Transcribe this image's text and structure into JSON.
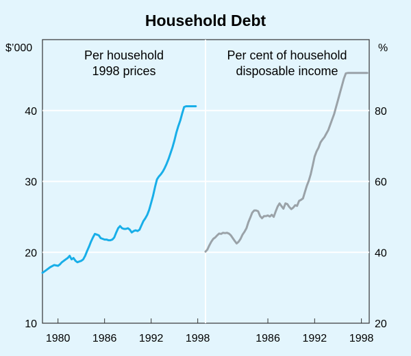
{
  "chart_data": {
    "type": "line",
    "title": "Household Debt",
    "grid": true,
    "x_ticks": [
      "1980",
      "1986",
      "1992",
      "1998"
    ],
    "panels": [
      {
        "label_lines": [
          "Per household",
          "1998 prices"
        ],
        "y_unit": "$’000",
        "y_axis_side": "left",
        "ylim": [
          10,
          50
        ],
        "y_ticks": [
          "10",
          "20",
          "30",
          "40"
        ],
        "xlim": [
          1978.0,
          1999.0
        ],
        "x_ticks": [
          "1980",
          "1986",
          "1992",
          "1998"
        ],
        "series": [
          {
            "color": "#18aee8",
            "x": [
              1978.0,
              1978.5,
              1979.0,
              1979.5,
              1980.0,
              1980.25,
              1980.5,
              1981.0,
              1981.25,
              1981.5,
              1981.75,
              1982.0,
              1982.25,
              1982.5,
              1982.75,
              1983.0,
              1983.25,
              1983.5,
              1983.75,
              1984.0,
              1984.25,
              1984.5,
              1984.75,
              1985.0,
              1985.25,
              1985.5,
              1985.75,
              1986.0,
              1986.25,
              1986.5,
              1986.75,
              1987.0,
              1987.25,
              1987.5,
              1987.75,
              1988.0,
              1988.25,
              1988.5,
              1988.75,
              1989.0,
              1989.25,
              1989.5,
              1989.75,
              1990.0,
              1990.25,
              1990.5,
              1990.75,
              1991.0,
              1991.25,
              1991.5,
              1991.75,
              1992.0,
              1992.25,
              1992.5,
              1992.75,
              1993.0,
              1993.25,
              1993.5,
              1993.75,
              1994.0,
              1994.25,
              1994.5,
              1994.75,
              1995.0,
              1995.25,
              1995.5,
              1995.75,
              1996.0,
              1996.25,
              1996.5,
              1996.75,
              1997.0,
              1997.25,
              1997.5,
              1997.75
            ],
            "values": [
              17.1,
              17.5,
              17.9,
              18.2,
              18.1,
              18.3,
              18.6,
              19.0,
              19.2,
              19.5,
              19.0,
              19.2,
              18.8,
              18.6,
              18.7,
              18.8,
              19.0,
              19.5,
              20.2,
              20.8,
              21.5,
              22.1,
              22.6,
              22.5,
              22.4,
              22.0,
              21.9,
              21.8,
              21.8,
              21.7,
              21.7,
              21.8,
              22.1,
              22.8,
              23.4,
              23.7,
              23.4,
              23.3,
              23.3,
              23.4,
              23.2,
              22.8,
              23.0,
              23.1,
              23.0,
              23.2,
              23.8,
              24.4,
              24.8,
              25.3,
              26.0,
              27.0,
              28.0,
              29.2,
              30.3,
              30.7,
              31.0,
              31.4,
              31.9,
              32.5,
              33.2,
              34.0,
              34.8,
              35.8,
              36.9,
              37.8,
              38.6,
              39.6,
              40.5,
              40.6,
              40.6,
              40.6,
              40.6,
              40.6,
              40.6
            ]
          }
        ]
      },
      {
        "label_lines": [
          "Per cent of household",
          "disposable income"
        ],
        "y_unit": "%",
        "y_axis_side": "right",
        "ylim": [
          20,
          100
        ],
        "y_ticks": [
          "20",
          "40",
          "60",
          "80"
        ],
        "xlim": [
          1978.0,
          1999.0
        ],
        "x_ticks": [
          "1986",
          "1992",
          "1998"
        ],
        "series": [
          {
            "color": "#9aa2a8",
            "x": [
              1978.0,
              1978.25,
              1978.5,
              1978.75,
              1979.0,
              1979.25,
              1979.5,
              1979.75,
              1980.0,
              1980.25,
              1980.5,
              1980.75,
              1981.0,
              1981.25,
              1981.5,
              1981.75,
              1982.0,
              1982.25,
              1982.5,
              1982.75,
              1983.0,
              1983.25,
              1983.5,
              1983.75,
              1984.0,
              1984.25,
              1984.5,
              1984.75,
              1985.0,
              1985.25,
              1985.5,
              1985.75,
              1986.0,
              1986.25,
              1986.5,
              1986.75,
              1987.0,
              1987.25,
              1987.5,
              1987.75,
              1988.0,
              1988.25,
              1988.5,
              1988.75,
              1989.0,
              1989.25,
              1989.5,
              1989.75,
              1990.0,
              1990.25,
              1990.5,
              1990.75,
              1991.0,
              1991.25,
              1991.5,
              1991.75,
              1992.0,
              1992.25,
              1992.5,
              1992.75,
              1993.0,
              1993.25,
              1993.5,
              1993.75,
              1994.0,
              1994.25,
              1994.5,
              1994.75,
              1995.0,
              1995.25,
              1995.5,
              1995.75,
              1996.0,
              1996.25,
              1996.5,
              1996.75,
              1997.0,
              1997.25,
              1997.5,
              1997.75,
              1998.0,
              1998.25,
              1998.5,
              1998.75
            ],
            "values": [
              40.2,
              40.8,
              42.0,
              43.0,
              43.8,
              44.2,
              44.8,
              45.3,
              45.2,
              45.5,
              45.4,
              45.5,
              45.3,
              44.8,
              44.0,
              43.2,
              42.5,
              43.0,
              43.8,
              45.0,
              45.8,
              46.8,
              48.5,
              49.8,
              51.2,
              51.8,
              51.8,
              51.6,
              50.2,
              49.6,
              50.2,
              50.2,
              50.4,
              50.1,
              50.6,
              50.0,
              51.5,
              52.9,
              53.8,
              53.0,
              52.3,
              53.8,
              53.6,
              52.8,
              52.2,
              52.6,
              53.3,
              53.1,
              54.5,
              54.8,
              55.2,
              57.0,
              58.8,
              60.2,
              62.0,
              64.5,
              67.0,
              68.5,
              69.5,
              71.0,
              71.8,
              72.5,
              73.5,
              74.5,
              76.0,
              77.5,
              79.0,
              81.0,
              83.0,
              85.0,
              87.0,
              89.0,
              90.5,
              90.6,
              90.6,
              90.6,
              90.6,
              90.6,
              90.6,
              90.6,
              90.6,
              90.6,
              90.6,
              90.6
            ]
          }
        ]
      }
    ]
  }
}
